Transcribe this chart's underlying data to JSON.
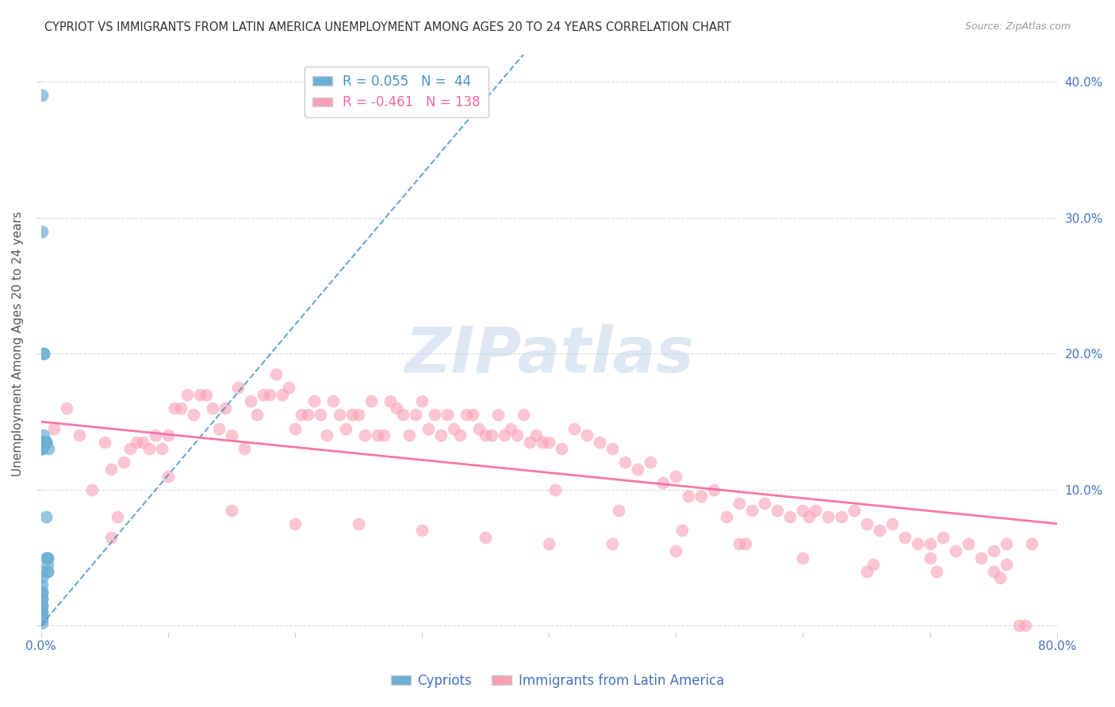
{
  "title": "CYPRIOT VS IMMIGRANTS FROM LATIN AMERICA UNEMPLOYMENT AMONG AGES 20 TO 24 YEARS CORRELATION CHART",
  "source": "Source: ZipAtlas.com",
  "ylabel": "Unemployment Among Ages 20 to 24 years",
  "xlim": [
    0.0,
    0.8
  ],
  "ylim": [
    -0.005,
    0.42
  ],
  "xticks": [
    0.0,
    0.1,
    0.2,
    0.3,
    0.4,
    0.5,
    0.6,
    0.7,
    0.8
  ],
  "xticklabels": [
    "0.0%",
    "",
    "",
    "",
    "",
    "",
    "",
    "",
    "80.0%"
  ],
  "yticks": [
    0.0,
    0.1,
    0.2,
    0.3,
    0.4
  ],
  "yticklabels": [
    "",
    "10.0%",
    "20.0%",
    "30.0%",
    "40.0%"
  ],
  "cypriot_color": "#6baed6",
  "immigrant_color": "#fa9fb5",
  "trendline_cypriot_color": "#4292c6",
  "trendline_immigrant_color": "#f768a1",
  "R_cypriot": 0.055,
  "N_cypriot": 44,
  "R_immigrant": -0.461,
  "N_immigrant": 138,
  "background_color": "#ffffff",
  "grid_color": "#cccccc",
  "axis_color": "#4472c4",
  "watermark": "ZIPatlas",
  "cypriot_points_x": [
    0.001,
    0.001,
    0.002,
    0.002,
    0.002,
    0.002,
    0.002,
    0.002,
    0.002,
    0.002,
    0.003,
    0.003,
    0.003,
    0.003,
    0.003,
    0.003,
    0.004,
    0.004,
    0.004,
    0.004,
    0.004,
    0.005,
    0.005,
    0.005,
    0.005,
    0.005,
    0.006,
    0.001,
    0.001,
    0.001,
    0.001,
    0.001,
    0.001,
    0.001,
    0.001,
    0.001,
    0.001,
    0.001,
    0.001,
    0.001,
    0.001,
    0.001,
    0.001,
    0.001
  ],
  "cypriot_points_y": [
    0.39,
    0.29,
    0.2,
    0.2,
    0.135,
    0.135,
    0.135,
    0.135,
    0.135,
    0.14,
    0.135,
    0.135,
    0.135,
    0.135,
    0.135,
    0.135,
    0.135,
    0.135,
    0.135,
    0.08,
    0.05,
    0.05,
    0.05,
    0.045,
    0.04,
    0.04,
    0.13,
    0.13,
    0.13,
    0.13,
    0.04,
    0.035,
    0.03,
    0.025,
    0.025,
    0.02,
    0.02,
    0.015,
    0.015,
    0.01,
    0.01,
    0.008,
    0.005,
    0.002
  ],
  "immigrant_points_x": [
    0.01,
    0.02,
    0.03,
    0.04,
    0.05,
    0.055,
    0.06,
    0.065,
    0.07,
    0.075,
    0.08,
    0.085,
    0.09,
    0.095,
    0.1,
    0.105,
    0.11,
    0.115,
    0.12,
    0.125,
    0.13,
    0.135,
    0.14,
    0.145,
    0.15,
    0.155,
    0.16,
    0.165,
    0.17,
    0.175,
    0.18,
    0.185,
    0.19,
    0.195,
    0.2,
    0.205,
    0.21,
    0.215,
    0.22,
    0.225,
    0.23,
    0.235,
    0.24,
    0.245,
    0.25,
    0.255,
    0.26,
    0.265,
    0.27,
    0.275,
    0.28,
    0.285,
    0.29,
    0.295,
    0.3,
    0.305,
    0.31,
    0.315,
    0.32,
    0.325,
    0.33,
    0.335,
    0.34,
    0.345,
    0.35,
    0.355,
    0.36,
    0.365,
    0.37,
    0.375,
    0.38,
    0.385,
    0.39,
    0.395,
    0.4,
    0.41,
    0.42,
    0.43,
    0.44,
    0.45,
    0.46,
    0.47,
    0.48,
    0.49,
    0.5,
    0.51,
    0.52,
    0.53,
    0.54,
    0.55,
    0.56,
    0.57,
    0.58,
    0.59,
    0.6,
    0.61,
    0.62,
    0.63,
    0.64,
    0.65,
    0.66,
    0.67,
    0.68,
    0.69,
    0.7,
    0.71,
    0.72,
    0.73,
    0.74,
    0.75,
    0.76,
    0.055,
    0.1,
    0.15,
    0.2,
    0.25,
    0.3,
    0.35,
    0.4,
    0.45,
    0.5,
    0.55,
    0.6,
    0.65,
    0.7,
    0.75,
    0.405,
    0.455,
    0.505,
    0.555,
    0.605,
    0.655,
    0.705,
    0.755,
    0.76,
    0.77,
    0.775,
    0.78
  ],
  "immigrant_points_y": [
    0.145,
    0.16,
    0.14,
    0.1,
    0.135,
    0.065,
    0.08,
    0.12,
    0.13,
    0.135,
    0.135,
    0.13,
    0.14,
    0.13,
    0.14,
    0.16,
    0.16,
    0.17,
    0.155,
    0.17,
    0.17,
    0.16,
    0.145,
    0.16,
    0.14,
    0.175,
    0.13,
    0.165,
    0.155,
    0.17,
    0.17,
    0.185,
    0.17,
    0.175,
    0.145,
    0.155,
    0.155,
    0.165,
    0.155,
    0.14,
    0.165,
    0.155,
    0.145,
    0.155,
    0.155,
    0.14,
    0.165,
    0.14,
    0.14,
    0.165,
    0.16,
    0.155,
    0.14,
    0.155,
    0.165,
    0.145,
    0.155,
    0.14,
    0.155,
    0.145,
    0.14,
    0.155,
    0.155,
    0.145,
    0.14,
    0.14,
    0.155,
    0.14,
    0.145,
    0.14,
    0.155,
    0.135,
    0.14,
    0.135,
    0.135,
    0.13,
    0.145,
    0.14,
    0.135,
    0.13,
    0.12,
    0.115,
    0.12,
    0.105,
    0.11,
    0.095,
    0.095,
    0.1,
    0.08,
    0.09,
    0.085,
    0.09,
    0.085,
    0.08,
    0.085,
    0.085,
    0.08,
    0.08,
    0.085,
    0.075,
    0.07,
    0.075,
    0.065,
    0.06,
    0.06,
    0.065,
    0.055,
    0.06,
    0.05,
    0.055,
    0.045,
    0.115,
    0.11,
    0.085,
    0.075,
    0.075,
    0.07,
    0.065,
    0.06,
    0.06,
    0.055,
    0.06,
    0.05,
    0.04,
    0.05,
    0.04,
    0.1,
    0.085,
    0.07,
    0.06,
    0.08,
    0.045,
    0.04,
    0.035,
    0.06,
    0.0,
    0.0,
    0.06
  ]
}
